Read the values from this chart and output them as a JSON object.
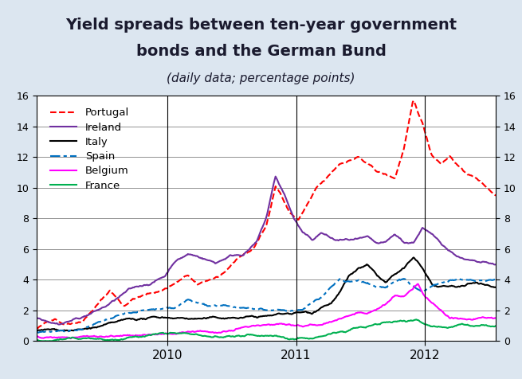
{
  "title_line1": "Yield spreads between ten-year government",
  "title_line2": "bonds and the German Bund",
  "subtitle": "(daily data; percentage points)",
  "title_bg_color": "#dce6f0",
  "plot_bg_color": "#ffffff",
  "outer_bg_color": "#dce6f0",
  "ylim": [
    0,
    16
  ],
  "yticks": [
    0,
    2,
    4,
    6,
    8,
    10,
    12,
    14,
    16
  ],
  "vlines_x": [
    0.33,
    0.66
  ],
  "legend_entries": [
    {
      "label": "Portugal",
      "color": "#ff0000",
      "linestyle": "dashed"
    },
    {
      "label": "Ireland",
      "color": "#7030a0",
      "linestyle": "solid"
    },
    {
      "label": "Italy",
      "color": "#000000",
      "linestyle": "solid"
    },
    {
      "label": "Spain",
      "color": "#0070c0",
      "linestyle": "dashdot"
    },
    {
      "label": "Belgium",
      "color": "#ff00ff",
      "linestyle": "solid"
    },
    {
      "label": "France",
      "color": "#00b050",
      "linestyle": "solid"
    }
  ],
  "x_tick_labels": [
    "2010",
    "2011",
    "2012"
  ],
  "x_tick_positions": [
    0.285,
    0.615,
    0.93
  ],
  "series_points": 520
}
